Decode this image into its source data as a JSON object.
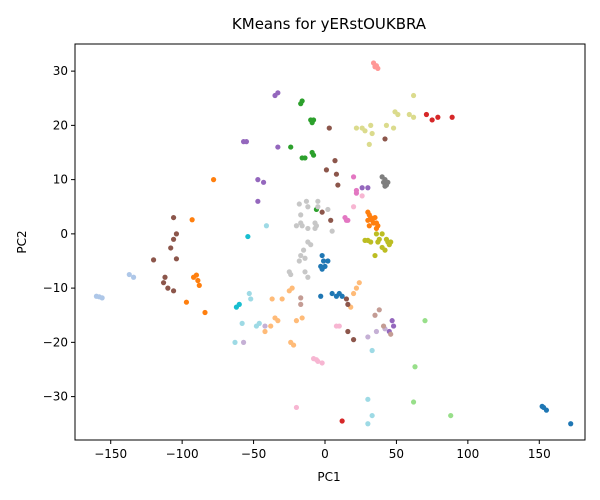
{
  "chart_data": {
    "type": "scatter",
    "title": "KMeans for yERstOUKBRA",
    "xlabel": "PC1",
    "ylabel": "PC2",
    "xlim": [
      -175,
      182
    ],
    "ylim": [
      -38,
      35
    ],
    "xticks": [
      -150,
      -100,
      -50,
      0,
      50,
      100,
      150
    ],
    "yticks": [
      -30,
      -20,
      -10,
      0,
      10,
      20,
      30
    ],
    "grid": false,
    "legend": "none",
    "series": [
      {
        "color": "#1f77b4",
        "points": [
          [
            -2,
            -4
          ],
          [
            -1,
            -5
          ],
          [
            -3,
            -6
          ],
          [
            -2,
            -6.5
          ],
          [
            0,
            -6
          ],
          [
            2,
            -5
          ],
          [
            -3,
            -11.5
          ],
          [
            5,
            -11
          ],
          [
            8,
            -11.5
          ],
          [
            10,
            -11
          ],
          [
            12,
            -11.5
          ],
          [
            153,
            -32
          ],
          [
            155,
            -32.5
          ],
          [
            152,
            -31.8
          ],
          [
            172,
            -35
          ]
        ]
      },
      {
        "color": "#aec7e8",
        "points": [
          [
            -160,
            -11.5
          ],
          [
            -158,
            -11.6
          ],
          [
            -156,
            -11.8
          ],
          [
            -137,
            -7.5
          ],
          [
            -134,
            -8
          ]
        ]
      },
      {
        "color": "#ff7f0e",
        "points": [
          [
            -78,
            10
          ],
          [
            -93,
            2.6
          ],
          [
            -92,
            -8
          ],
          [
            -89,
            -8.6
          ],
          [
            -90,
            -7.6
          ],
          [
            -88,
            -9.5
          ],
          [
            -97,
            -12.6
          ],
          [
            -84,
            -14.5
          ],
          [
            30,
            4
          ],
          [
            31,
            3.5
          ],
          [
            32,
            3
          ],
          [
            33,
            2.5
          ],
          [
            34,
            2
          ],
          [
            35,
            3
          ],
          [
            36,
            2
          ],
          [
            30,
            2.5
          ],
          [
            31,
            1.5
          ],
          [
            37,
            1.5
          ],
          [
            36,
            1
          ]
        ]
      },
      {
        "color": "#ffbb78",
        "points": [
          [
            -37,
            -12
          ],
          [
            -30,
            -12
          ],
          [
            -25,
            -10.5
          ],
          [
            -23,
            -10
          ],
          [
            -35,
            -15.5
          ],
          [
            -33,
            -16
          ],
          [
            -38,
            -17
          ],
          [
            -42,
            -18
          ],
          [
            -20,
            -16
          ],
          [
            -16,
            -15.5
          ],
          [
            -24,
            -20
          ],
          [
            -22,
            -20.5
          ],
          [
            18,
            -13.5
          ],
          [
            20,
            -11
          ],
          [
            22,
            -10
          ],
          [
            24,
            -9
          ]
        ]
      },
      {
        "color": "#2ca02c",
        "points": [
          [
            -17,
            24
          ],
          [
            -16,
            24.5
          ],
          [
            -10,
            21
          ],
          [
            -8,
            21
          ],
          [
            -9,
            20.5
          ],
          [
            -24,
            16
          ],
          [
            -16,
            14
          ],
          [
            -14,
            14
          ],
          [
            -8,
            14.5
          ],
          [
            -9,
            15
          ],
          [
            -6,
            4.5
          ]
        ]
      },
      {
        "color": "#98df8a",
        "points": [
          [
            70,
            -16
          ],
          [
            63,
            -24.5
          ],
          [
            62,
            -31
          ],
          [
            88,
            -33.5
          ]
        ]
      },
      {
        "color": "#d62728",
        "points": [
          [
            71,
            22
          ],
          [
            75,
            21
          ],
          [
            79,
            21.5
          ],
          [
            89,
            21.5
          ],
          [
            12,
            -34.5
          ]
        ]
      },
      {
        "color": "#ff9896",
        "points": [
          [
            34,
            31.5
          ],
          [
            36,
            31
          ],
          [
            37,
            30.5
          ],
          [
            35,
            30.8
          ]
        ]
      },
      {
        "color": "#9467bd",
        "points": [
          [
            -35,
            25.5
          ],
          [
            -33,
            26
          ],
          [
            -57,
            17
          ],
          [
            -55,
            17
          ],
          [
            -33,
            16
          ],
          [
            -47,
            10
          ],
          [
            -43,
            9.5
          ],
          [
            -47,
            6
          ],
          [
            30,
            8.5
          ],
          [
            26,
            8.5
          ],
          [
            47,
            -16
          ],
          [
            48,
            -17
          ],
          [
            45,
            -18
          ]
        ]
      },
      {
        "color": "#c5b0d5",
        "points": [
          [
            -57,
            -20
          ],
          [
            -42,
            -17
          ],
          [
            30,
            -19
          ],
          [
            36,
            -18
          ],
          [
            42,
            -17.5
          ]
        ]
      },
      {
        "color": "#8c564b",
        "points": [
          [
            -106,
            3
          ],
          [
            -104,
            0
          ],
          [
            -106,
            -1
          ],
          [
            -108,
            -2.6
          ],
          [
            -104,
            -4.6
          ],
          [
            -120,
            -4.8
          ],
          [
            -112,
            -8
          ],
          [
            -113,
            -9
          ],
          [
            -106,
            -10.5
          ],
          [
            -110,
            -10
          ],
          [
            3,
            19.5
          ],
          [
            7,
            13.5
          ],
          [
            1,
            11.8
          ],
          [
            8,
            11
          ],
          [
            9,
            9
          ],
          [
            -2,
            4
          ],
          [
            4,
            2.5
          ],
          [
            15,
            -12
          ],
          [
            16,
            -13
          ],
          [
            16,
            -18
          ],
          [
            20,
            -19.5
          ],
          [
            42,
            17.5
          ]
        ]
      },
      {
        "color": "#c49c94",
        "points": [
          [
            -17,
            -11.8
          ],
          [
            -17,
            -13
          ],
          [
            38,
            -14
          ],
          [
            35,
            -15
          ],
          [
            41,
            -17
          ],
          [
            46,
            -18.5
          ]
        ]
      },
      {
        "color": "#e377c2",
        "points": [
          [
            20,
            10.5
          ],
          [
            22,
            8
          ],
          [
            22,
            7.5
          ],
          [
            14,
            3
          ],
          [
            15,
            2.5
          ],
          [
            16,
            2.5
          ]
        ]
      },
      {
        "color": "#f7b6d2",
        "points": [
          [
            -8,
            -23
          ],
          [
            -5,
            -23.5
          ],
          [
            -2,
            -23.8
          ],
          [
            -6,
            -23.2
          ],
          [
            8,
            -17
          ],
          [
            20,
            5
          ],
          [
            26,
            7
          ],
          [
            10,
            -17
          ],
          [
            -20,
            -32
          ]
        ]
      },
      {
        "color": "#7f7f7f",
        "points": [
          [
            40,
            10.5
          ],
          [
            42,
            10
          ],
          [
            41,
            9.5
          ],
          [
            43,
            9
          ],
          [
            44,
            9.5
          ],
          [
            42,
            8.8
          ]
        ]
      },
      {
        "color": "#c7c7c7",
        "points": [
          [
            -13,
            6
          ],
          [
            -12,
            5
          ],
          [
            -5,
            6
          ],
          [
            -5,
            5
          ],
          [
            2,
            4.5
          ],
          [
            -18,
            5.5
          ],
          [
            -17,
            3.5
          ],
          [
            -16,
            1.5
          ],
          [
            -20,
            1.5
          ],
          [
            -17,
            2
          ],
          [
            -12,
            1
          ],
          [
            -12,
            -1.5
          ],
          [
            -10,
            -2
          ],
          [
            -15,
            -3
          ],
          [
            -7,
            1
          ],
          [
            -7,
            2
          ],
          [
            -6,
            1.5
          ],
          [
            5,
            0.5
          ],
          [
            -17,
            -4
          ],
          [
            -14,
            -4.5
          ],
          [
            -18,
            -5
          ],
          [
            -25,
            -7
          ],
          [
            -24,
            -7.5
          ],
          [
            -14,
            -7
          ],
          [
            -12,
            -8
          ]
        ]
      },
      {
        "color": "#bcbd22",
        "points": [
          [
            38,
            -1
          ],
          [
            40,
            0
          ],
          [
            43,
            -1
          ],
          [
            44,
            -1.5
          ],
          [
            46,
            -1.5
          ],
          [
            45,
            -2
          ],
          [
            40,
            -2.5
          ],
          [
            42,
            -3
          ],
          [
            37,
            -1.5
          ],
          [
            35,
            -4
          ],
          [
            32,
            -1.5
          ],
          [
            30,
            -1.2
          ],
          [
            28,
            -1.2
          ],
          [
            36,
            0
          ]
        ]
      },
      {
        "color": "#dbdb8d",
        "points": [
          [
            62,
            25.5
          ],
          [
            49,
            22.5
          ],
          [
            51,
            22
          ],
          [
            59,
            22
          ],
          [
            62,
            21.5
          ],
          [
            22,
            19.5
          ],
          [
            26,
            19.5
          ],
          [
            28,
            19
          ],
          [
            32,
            20
          ],
          [
            33,
            18.5
          ],
          [
            31,
            16.5
          ],
          [
            43,
            20
          ],
          [
            48,
            19.5
          ]
        ]
      },
      {
        "color": "#17becf",
        "points": [
          [
            -54,
            -0.5
          ],
          [
            -62,
            -13.5
          ],
          [
            -60,
            -13
          ]
        ]
      },
      {
        "color": "#9edae5",
        "points": [
          [
            -41,
            1.5
          ],
          [
            -53,
            -11
          ],
          [
            -52,
            -12
          ],
          [
            -46,
            -16.5
          ],
          [
            -48,
            -17
          ],
          [
            -58,
            -16.5
          ],
          [
            -63,
            -20
          ],
          [
            33,
            -21.5
          ],
          [
            30,
            -30.5
          ],
          [
            33,
            -33.5
          ],
          [
            30,
            -35
          ]
        ]
      }
    ]
  }
}
